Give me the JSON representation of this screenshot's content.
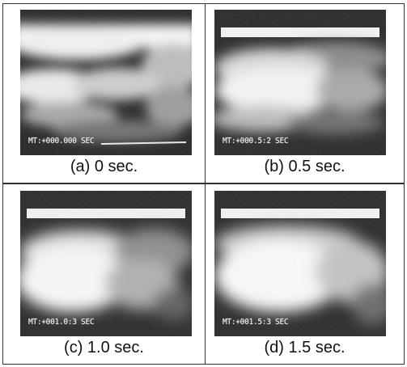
{
  "panels": [
    {
      "caption": "(a) 0 sec.",
      "timestamp": "MT:+000.000 SEC"
    },
    {
      "caption": "(b) 0.5 sec.",
      "timestamp": "MT:+000.5:2 SEC"
    },
    {
      "caption": "(c) 1.0 sec.",
      "timestamp": "MT:+001.0:3 SEC"
    },
    {
      "caption": "(d) 1.5 sec.",
      "timestamp": "MT:+001.5:3 SEC"
    }
  ]
}
